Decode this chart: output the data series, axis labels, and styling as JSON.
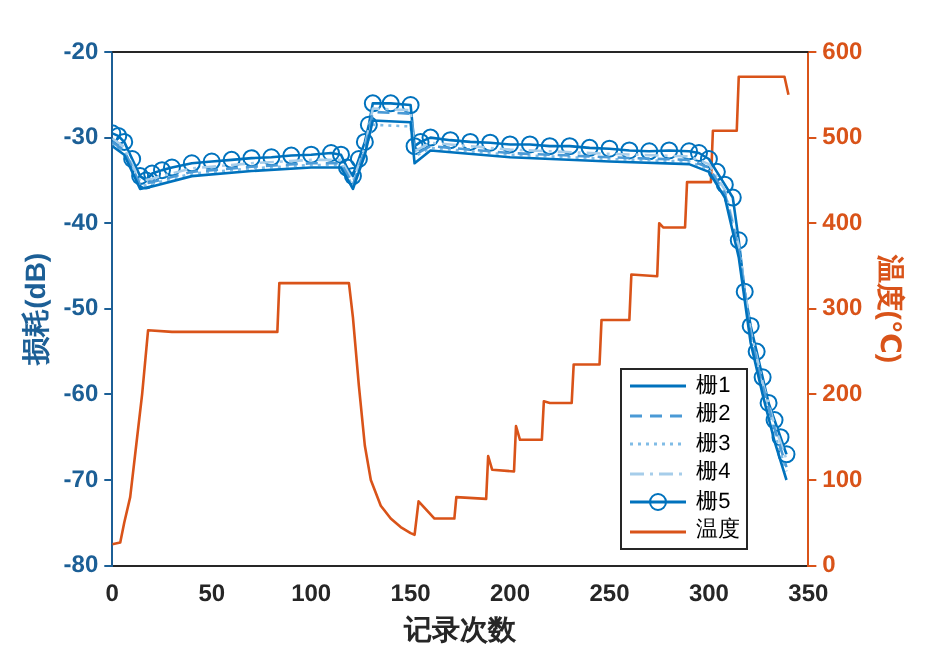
{
  "chart_data": {
    "type": "line",
    "xlabel": "记录次数",
    "ylabel": "损耗(dB)",
    "y2label": "温度(℃)",
    "xlim": [
      0,
      350
    ],
    "xticks": [
      0,
      50,
      100,
      150,
      200,
      250,
      300,
      350
    ],
    "ylim": [
      -80,
      -20
    ],
    "yticks": [
      -80,
      -70,
      -60,
      -50,
      -40,
      -30,
      -20
    ],
    "y2lim": [
      0,
      600
    ],
    "y2ticks": [
      0,
      100,
      200,
      300,
      400,
      500,
      600
    ],
    "grid": false,
    "legend": "bottom right",
    "series": [
      {
        "name": "栅1",
        "color": "#0072bd",
        "line_style": "solid",
        "marker": "none",
        "x": [
          0,
          6,
          14,
          20,
          40,
          70,
          100,
          115,
          121,
          127,
          131,
          150,
          152,
          160,
          200,
          250,
          290,
          300,
          308,
          315,
          321,
          327,
          333,
          339
        ],
        "values": [
          -31,
          -32,
          -36,
          -35.7,
          -34.5,
          -33.9,
          -33.5,
          -33.5,
          -36,
          -32,
          -28,
          -28.2,
          -33,
          -31.5,
          -32.3,
          -32.8,
          -33.1,
          -34,
          -37,
          -44,
          -54,
          -60,
          -65.5,
          -70
        ]
      },
      {
        "name": "栅2",
        "color": "#4a9ad6",
        "line_style": "dashed",
        "marker": "none",
        "x": [
          0,
          6,
          14,
          20,
          40,
          70,
          100,
          115,
          121,
          127,
          131,
          150,
          152,
          160,
          200,
          250,
          290,
          300,
          308,
          315,
          321,
          327,
          333,
          339
        ],
        "values": [
          -30.5,
          -31.5,
          -35.5,
          -35.2,
          -34,
          -33.4,
          -33,
          -33,
          -35.5,
          -31.5,
          -27,
          -27.2,
          -32,
          -31,
          -31.8,
          -32.3,
          -32.6,
          -33.5,
          -36.5,
          -43,
          -53,
          -59,
          -64,
          -68.5
        ]
      },
      {
        "name": "栅3",
        "color": "#80bce6",
        "line_style": "dotted",
        "marker": "none",
        "x": [
          0,
          6,
          14,
          20,
          40,
          70,
          100,
          115,
          121,
          127,
          131,
          150,
          152,
          160,
          200,
          250,
          290,
          300,
          308,
          315,
          321,
          327,
          333,
          339
        ],
        "values": [
          -30.7,
          -31.7,
          -35.7,
          -35.4,
          -34.2,
          -33.6,
          -33.2,
          -33.2,
          -35.7,
          -31.7,
          -28.5,
          -28.7,
          -32.2,
          -31.2,
          -32,
          -32.5,
          -32.8,
          -33.7,
          -36.7,
          -43.5,
          -53.5,
          -59.5,
          -64.5,
          -69
        ]
      },
      {
        "name": "栅4",
        "color": "#a6cdea",
        "line_style": "dashdot",
        "marker": "none",
        "x": [
          0,
          6,
          14,
          20,
          40,
          70,
          100,
          115,
          121,
          127,
          131,
          150,
          152,
          160,
          200,
          250,
          290,
          300,
          308,
          315,
          321,
          327,
          333,
          339
        ],
        "values": [
          -30.1,
          -31.1,
          -35.1,
          -34.8,
          -33.6,
          -33,
          -32.6,
          -32.6,
          -35.1,
          -31.1,
          -26.6,
          -26.8,
          -31.6,
          -30.6,
          -31.4,
          -31.9,
          -32.2,
          -33.1,
          -36.1,
          -42.6,
          -52.6,
          -58.6,
          -63.6,
          -67.6
        ]
      },
      {
        "name": "栅5",
        "color": "#0072bd",
        "line_style": "solid",
        "marker": "circle",
        "x": [
          0,
          3,
          6,
          10,
          14,
          17,
          20,
          25,
          30,
          40,
          50,
          60,
          70,
          80,
          90,
          100,
          110,
          115,
          118,
          121,
          124,
          127,
          129,
          131,
          140,
          150,
          152,
          155,
          160,
          170,
          180,
          190,
          200,
          210,
          220,
          230,
          240,
          250,
          260,
          270,
          280,
          290,
          295,
          300,
          304,
          308,
          312,
          315,
          318,
          321,
          324,
          327,
          330,
          333,
          336,
          339
        ],
        "values": [
          -29.5,
          -29.8,
          -30.5,
          -32.5,
          -34.5,
          -35,
          -34.2,
          -33.8,
          -33.5,
          -33,
          -32.8,
          -32.6,
          -32.4,
          -32.3,
          -32.1,
          -32,
          -31.8,
          -32,
          -33.5,
          -34.5,
          -32.5,
          -30.5,
          -28.5,
          -26,
          -26,
          -26.2,
          -31,
          -30.5,
          -30,
          -30.3,
          -30.5,
          -30.6,
          -30.8,
          -30.8,
          -31,
          -31,
          -31.2,
          -31.3,
          -31.5,
          -31.6,
          -31.5,
          -31.6,
          -31.8,
          -32.5,
          -34,
          -35.5,
          -37,
          -42,
          -48,
          -52,
          -55,
          -58,
          -61,
          -63,
          -65,
          -67
        ]
      },
      {
        "name": "温度",
        "color": "#d95319",
        "line_style": "solid",
        "marker": "none",
        "axis": "y2",
        "x": [
          0,
          4,
          6,
          9,
          12,
          15,
          18,
          30,
          50,
          70,
          83,
          84,
          100,
          119,
          121,
          124,
          127,
          130,
          135,
          140,
          145,
          150,
          152,
          154,
          162,
          172,
          173,
          188,
          189,
          191,
          202,
          203,
          205,
          216,
          217,
          220,
          231,
          232,
          245,
          246,
          260,
          261,
          274,
          275,
          277,
          288,
          289,
          301,
          302,
          314,
          315,
          338,
          340
        ],
        "values": [
          25,
          27,
          50,
          80,
          140,
          200,
          275,
          273,
          273,
          273,
          273,
          330,
          330,
          330,
          290,
          210,
          140,
          100,
          70,
          55,
          45,
          38,
          36,
          75,
          55,
          55,
          80,
          78,
          128,
          112,
          110,
          163,
          147,
          147,
          192,
          190,
          190,
          235,
          235,
          287,
          287,
          340,
          338,
          400,
          395,
          395,
          448,
          448,
          508,
          508,
          571,
          571,
          550
        ]
      }
    ]
  }
}
